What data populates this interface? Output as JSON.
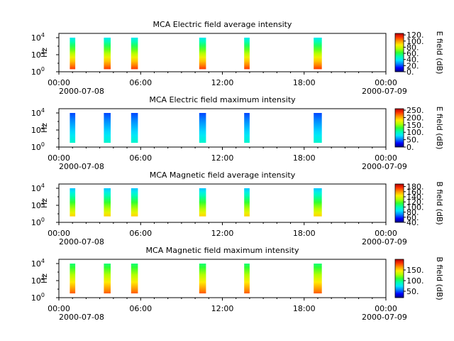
{
  "colors": {
    "colormap": [
      "#00007f",
      "#0000ff",
      "#0080ff",
      "#00e5ff",
      "#00ffb0",
      "#30ff30",
      "#b0ff00",
      "#ffee00",
      "#ff9900",
      "#ff3300",
      "#b00000"
    ],
    "axis": "#000000",
    "background": "#ffffff"
  },
  "chart_data": [
    {
      "type": "heatmap",
      "title": "MCA  Electric field average intensity",
      "ylabel": "Hz",
      "ylim_exponents": [
        0,
        4.5
      ],
      "yticks": [
        {
          "base": "10",
          "exp": "0"
        },
        {
          "base": "10",
          "exp": "2"
        },
        {
          "base": "10",
          "exp": "4"
        }
      ],
      "xticks": [
        "00:00",
        "06:00",
        "12:00",
        "18:00",
        "00:00"
      ],
      "xticks_hours": [
        0,
        6,
        12,
        18,
        24
      ],
      "date_left": "2000-07-08",
      "date_right": "2000-07-09",
      "colorbar_label": "E field (dB)",
      "colorbar_range": [
        0,
        125
      ],
      "colorbar_ticks": [
        "120.",
        "100.",
        "80.",
        "60.",
        "40.",
        "20.",
        "0."
      ],
      "colorbar_tick_values": [
        120,
        100,
        80,
        60,
        40,
        20,
        0
      ],
      "segments_hours": [
        [
          0.8,
          1.2
        ],
        [
          3.3,
          3.8
        ],
        [
          5.3,
          5.8
        ],
        [
          10.3,
          10.8
        ],
        [
          13.6,
          14.0
        ],
        [
          18.7,
          19.3
        ]
      ],
      "data_yrange_exponents": [
        0.3,
        4.0
      ],
      "profile": {
        "top": 40,
        "bottom": 112
      }
    },
    {
      "type": "heatmap",
      "title": "MCA  Electric field maximum intensity",
      "ylabel": "Hz",
      "ylim_exponents": [
        0,
        4.5
      ],
      "yticks": [
        {
          "base": "10",
          "exp": "0"
        },
        {
          "base": "10",
          "exp": "2"
        },
        {
          "base": "10",
          "exp": "4"
        }
      ],
      "xticks": [
        "00:00",
        "06:00",
        "12:00",
        "18:00",
        "00:00"
      ],
      "xticks_hours": [
        0,
        6,
        12,
        18,
        24
      ],
      "date_left": "2000-07-08",
      "date_right": "2000-07-09",
      "colorbar_label": "E field (dB)",
      "colorbar_range": [
        0,
        260
      ],
      "colorbar_ticks": [
        "250.",
        "200.",
        "150.",
        "100.",
        "50.",
        "0."
      ],
      "colorbar_tick_values": [
        250,
        200,
        150,
        100,
        50,
        0
      ],
      "segments_hours": [
        [
          0.8,
          1.2
        ],
        [
          3.3,
          3.8
        ],
        [
          5.3,
          5.8
        ],
        [
          10.3,
          10.8
        ],
        [
          13.6,
          14.0
        ],
        [
          18.7,
          19.3
        ]
      ],
      "data_yrange_exponents": [
        0.5,
        4.0
      ],
      "profile": {
        "top": 40,
        "bottom": 95
      }
    },
    {
      "type": "heatmap",
      "title": "MCA  Magnetic field average intensity",
      "ylabel": "Hz",
      "ylim_exponents": [
        0,
        4.5
      ],
      "yticks": [
        {
          "base": "10",
          "exp": "0"
        },
        {
          "base": "10",
          "exp": "2"
        },
        {
          "base": "10",
          "exp": "4"
        }
      ],
      "xticks": [
        "00:00",
        "06:00",
        "12:00",
        "18:00",
        "00:00"
      ],
      "xticks_hours": [
        0,
        6,
        12,
        18,
        24
      ],
      "date_left": "2000-07-08",
      "date_right": "2000-07-09",
      "colorbar_label": "B field (dB)",
      "colorbar_range": [
        40,
        190
      ],
      "colorbar_ticks": [
        "180.",
        "160.",
        "140.",
        "120.",
        "100.",
        "80.",
        "60.",
        "40."
      ],
      "colorbar_tick_values": [
        180,
        160,
        140,
        120,
        100,
        80,
        60,
        40
      ],
      "segments_hours": [
        [
          0.8,
          1.2
        ],
        [
          3.3,
          3.8
        ],
        [
          5.3,
          5.8
        ],
        [
          10.3,
          10.8
        ],
        [
          13.6,
          14.0
        ],
        [
          18.7,
          19.3
        ]
      ],
      "data_yrange_exponents": [
        0.7,
        4.0
      ],
      "profile": {
        "top": 80,
        "bottom": 150
      }
    },
    {
      "type": "heatmap",
      "title": "MCA  Magnetic field maximum intensity",
      "ylabel": "Hz",
      "ylim_exponents": [
        0,
        4.5
      ],
      "yticks": [
        {
          "base": "10",
          "exp": "0"
        },
        {
          "base": "10",
          "exp": "2"
        },
        {
          "base": "10",
          "exp": "4"
        }
      ],
      "xticks": [
        "00:00",
        "06:00",
        "12:00",
        "18:00",
        "00:00"
      ],
      "xticks_hours": [
        0,
        6,
        12,
        18,
        24
      ],
      "date_left": "2000-07-08",
      "date_right": "2000-07-09",
      "colorbar_label": "B field (dB)",
      "colorbar_range": [
        20,
        200
      ],
      "colorbar_ticks": [
        "150.",
        "100.",
        "50."
      ],
      "colorbar_tick_values": [
        150,
        100,
        50
      ],
      "segments_hours": [
        [
          0.8,
          1.2
        ],
        [
          3.3,
          3.8
        ],
        [
          5.3,
          5.8
        ],
        [
          10.3,
          10.8
        ],
        [
          13.6,
          14.0
        ],
        [
          18.7,
          19.3
        ]
      ],
      "data_yrange_exponents": [
        0.5,
        4.0
      ],
      "profile": {
        "top": 100,
        "bottom": 175
      }
    }
  ]
}
